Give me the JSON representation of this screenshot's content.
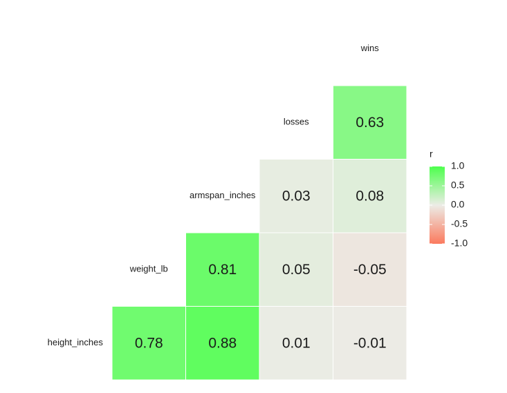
{
  "chart_data": {
    "type": "heatmap",
    "variables": [
      "height_inches",
      "weight_lb",
      "armspan_inches",
      "losses",
      "wins"
    ],
    "values": [
      [
        0.78
      ],
      [
        0.88,
        0.81
      ],
      [
        0.01,
        0.05,
        0.03
      ],
      [
        -0.01,
        -0.05,
        0.08,
        0.63
      ]
    ],
    "colors": {
      "low": "#fb7a5e",
      "mid": "#ecece6",
      "high": "#4dff4d"
    },
    "legend_title": "r",
    "limits": [
      -1,
      1
    ],
    "legend_ticks": [
      {
        "value": 1,
        "label": "1.0"
      },
      {
        "value": 0.5,
        "label": "0.5"
      },
      {
        "value": 0,
        "label": "0.0"
      },
      {
        "value": -0.5,
        "label": "-0.5"
      },
      {
        "value": -1,
        "label": "-1.0"
      }
    ]
  }
}
